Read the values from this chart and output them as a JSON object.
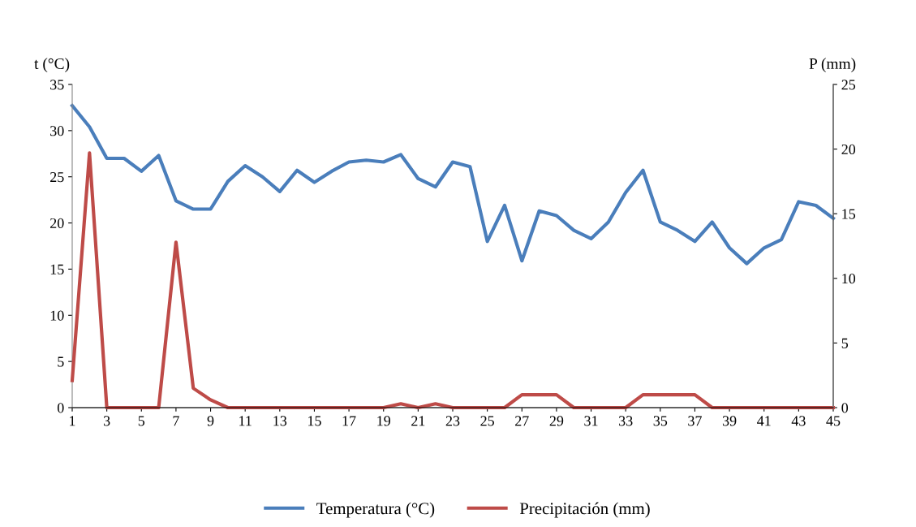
{
  "chart_data": {
    "type": "line",
    "ylabel": "t (°C)",
    "y2label": "P (mm)",
    "x": [
      1,
      2,
      3,
      4,
      5,
      6,
      7,
      8,
      9,
      10,
      11,
      12,
      13,
      14,
      15,
      16,
      17,
      18,
      19,
      20,
      21,
      22,
      23,
      24,
      25,
      26,
      27,
      28,
      29,
      30,
      31,
      32,
      33,
      34,
      35,
      36,
      37,
      38,
      39,
      40,
      41,
      42,
      43,
      44,
      45
    ],
    "xlim": [
      1,
      45
    ],
    "xticks": [
      1,
      3,
      5,
      7,
      9,
      11,
      13,
      15,
      17,
      19,
      21,
      23,
      25,
      27,
      29,
      31,
      33,
      35,
      37,
      39,
      41,
      43,
      45
    ],
    "ylim": [
      0,
      35
    ],
    "yticks": [
      0,
      5,
      10,
      15,
      20,
      25,
      30,
      35
    ],
    "y2lim": [
      0,
      25
    ],
    "y2ticks": [
      0,
      5,
      10,
      15,
      20,
      25
    ],
    "series": [
      {
        "name": "Temperatura (°C)",
        "color": "#4a7ebb",
        "values": [
          32.7,
          30.4,
          27.0,
          27.0,
          25.6,
          27.3,
          22.4,
          21.5,
          21.5,
          24.5,
          26.2,
          25.0,
          23.4,
          25.7,
          24.4,
          25.6,
          26.6,
          26.8,
          26.6,
          27.4,
          24.8,
          23.9,
          26.6,
          26.1,
          18.0,
          21.9,
          15.9,
          21.3,
          20.8,
          19.2,
          18.3,
          20.1,
          23.3,
          25.7,
          20.1,
          19.2,
          18.0,
          20.1,
          17.3,
          15.6,
          17.3,
          18.2,
          22.3,
          21.9,
          20.5
        ]
      },
      {
        "name": "Precipitación (mm)",
        "color": "#be4b48",
        "axis": "y2",
        "values": [
          2.1,
          19.7,
          0,
          0,
          0,
          0,
          12.8,
          1.5,
          0.6,
          0,
          0,
          0,
          0,
          0,
          0,
          0,
          0,
          0,
          0,
          0.3,
          0,
          0.3,
          0,
          0,
          0,
          0,
          1.0,
          1.0,
          1.0,
          0,
          0,
          0,
          0,
          1.0,
          1.0,
          1.0,
          1.0,
          0,
          0,
          0,
          0,
          0,
          0,
          0,
          0
        ]
      }
    ],
    "grid": false,
    "legend": "bottom",
    "marker": "none",
    "line_style": "solid"
  }
}
